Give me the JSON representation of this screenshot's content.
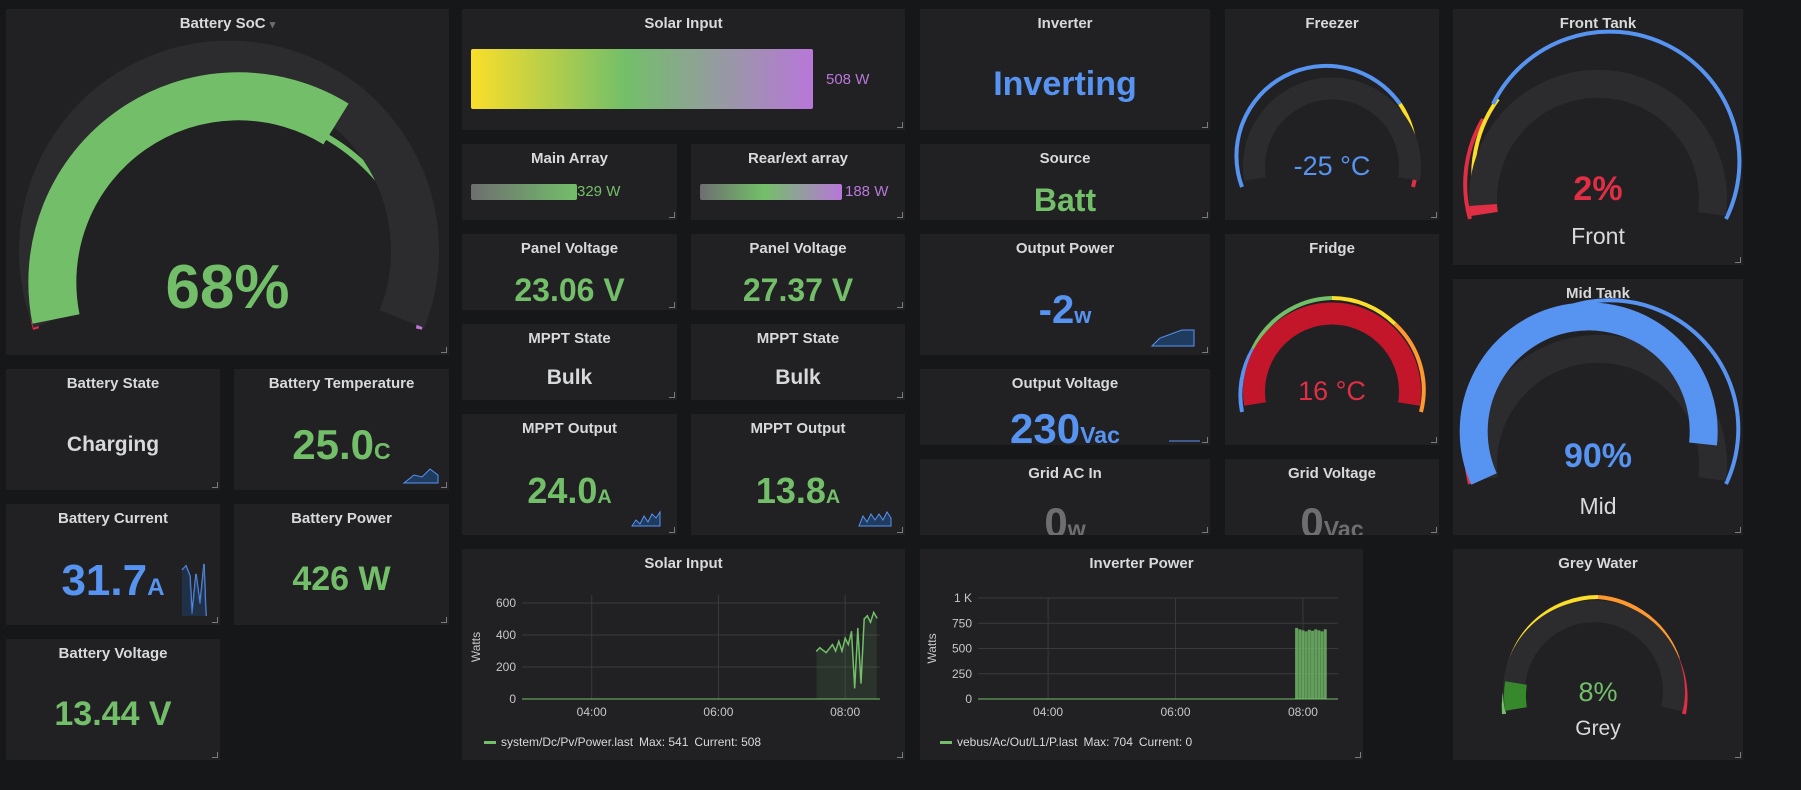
{
  "battery_soc": {
    "title": "Battery SoC",
    "value": "68%",
    "level": 68
  },
  "solar_input": {
    "title": "Solar Input",
    "value": "508 W",
    "level_fraction": 0.95
  },
  "inverter": {
    "title": "Inverter",
    "value": "Inverting"
  },
  "freezer": {
    "title": "Freezer",
    "value": "-25 °C"
  },
  "front_tank": {
    "title": "Front Tank",
    "value": "2%",
    "label": "Front",
    "level": 2
  },
  "main_array": {
    "title": "Main Array",
    "value": "329 W"
  },
  "rear_array": {
    "title": "Rear/ext array",
    "value": "188 W"
  },
  "source": {
    "title": "Source",
    "value": "Batt"
  },
  "panel_voltage_1": {
    "title": "Panel Voltage",
    "value": "23.06 V"
  },
  "panel_voltage_2": {
    "title": "Panel Voltage",
    "value": "27.37 V"
  },
  "output_power": {
    "title": "Output Power",
    "value": "-2",
    "unit": "w"
  },
  "fridge": {
    "title": "Fridge",
    "value": "16 °C"
  },
  "mppt_state_1": {
    "title": "MPPT State",
    "value": "Bulk"
  },
  "mppt_state_2": {
    "title": "MPPT State",
    "value": "Bulk"
  },
  "mid_tank": {
    "title": "Mid Tank",
    "value": "90%",
    "label": "Mid",
    "level": 90
  },
  "battery_state": {
    "title": "Battery State",
    "value": "Charging"
  },
  "battery_temp": {
    "title": "Battery Temperature",
    "value": "25.0",
    "unit": "C"
  },
  "output_voltage": {
    "title": "Output Voltage",
    "value": "230",
    "unit": "Vac"
  },
  "mppt_output_1": {
    "title": "MPPT Output",
    "value": "24.0",
    "unit": "A"
  },
  "mppt_output_2": {
    "title": "MPPT Output",
    "value": "13.8",
    "unit": "A"
  },
  "grid_ac_in": {
    "title": "Grid AC In",
    "value": "0",
    "unit": "w"
  },
  "grid_voltage": {
    "title": "Grid Voltage",
    "value": "0",
    "unit": "Vac"
  },
  "battery_current": {
    "title": "Battery Current",
    "value": "31.7",
    "unit": "A"
  },
  "battery_power": {
    "title": "Battery Power",
    "value": "426 W"
  },
  "battery_voltage": {
    "title": "Battery Voltage",
    "value": "13.44 V"
  },
  "grey_water": {
    "title": "Grey Water",
    "value": "8%",
    "label": "Grey",
    "level": 8
  },
  "colors": {
    "green": "#73bf69",
    "blue": "#5794f2",
    "red": "#e02f44",
    "purple": "#b877d9",
    "yellow": "#fade2a",
    "orange": "#ff9830",
    "panel": "#212124",
    "bg": "#161719"
  },
  "chart_data": [
    {
      "type": "line",
      "title": "Solar Input",
      "ylabel": "Watts",
      "y_ticks": [
        "0",
        "200",
        "400",
        "600"
      ],
      "x_ticks": [
        "04:00",
        "06:00",
        "08:00"
      ],
      "ylim": [
        0,
        650
      ],
      "legend": {
        "series": "system/Dc/Pv/Power.last",
        "max": "Max: 541",
        "current": "Current: 508"
      },
      "series": [
        {
          "name": "system/Dc/Pv/Power.last",
          "x": [
            7.55,
            7.6,
            7.7,
            7.8,
            7.85,
            7.9,
            7.95,
            8.0,
            8.05,
            8.1,
            8.15,
            8.2,
            8.25,
            8.3,
            8.35,
            8.4,
            8.45,
            8.5
          ],
          "values": [
            300,
            320,
            290,
            340,
            300,
            360,
            300,
            380,
            340,
            420,
            70,
            440,
            100,
            500,
            520,
            480,
            541,
            508
          ]
        }
      ]
    },
    {
      "type": "bar",
      "title": "Inverter Power",
      "ylabel": "Watts",
      "y_ticks": [
        "0",
        "250",
        "500",
        "750",
        "1 K"
      ],
      "x_ticks": [
        "04:00",
        "06:00",
        "08:00"
      ],
      "ylim": [
        0,
        1000
      ],
      "legend": {
        "series": "vebus/Ac/Out/L1/P.last",
        "max": "Max: 704",
        "current": "Current: 0"
      },
      "series": [
        {
          "name": "vebus/Ac/Out/L1/P.last",
          "x": [
            7.9,
            7.95,
            8.0,
            8.05,
            8.1,
            8.15,
            8.2,
            8.25,
            8.3,
            8.35
          ],
          "values": [
            704,
            690,
            680,
            670,
            685,
            675,
            690,
            680,
            670,
            690
          ]
        }
      ]
    }
  ]
}
